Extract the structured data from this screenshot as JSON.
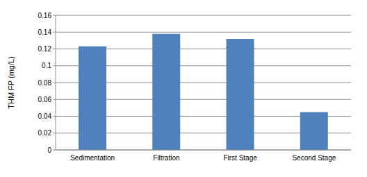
{
  "chart_data": {
    "type": "bar",
    "y_label": "THM FP (mg/L)",
    "categories": [
      "Sedimentation",
      "Filtration",
      "First Stage",
      "Second Stage"
    ],
    "values": [
      0.123,
      0.138,
      0.132,
      0.045
    ],
    "color": "#4f81bd",
    "ylim": [
      0,
      0.16
    ],
    "yticks": [
      0,
      0.02,
      0.04,
      0.06,
      0.08,
      0.1,
      0.12,
      0.14,
      0.16
    ],
    "grid": true
  }
}
